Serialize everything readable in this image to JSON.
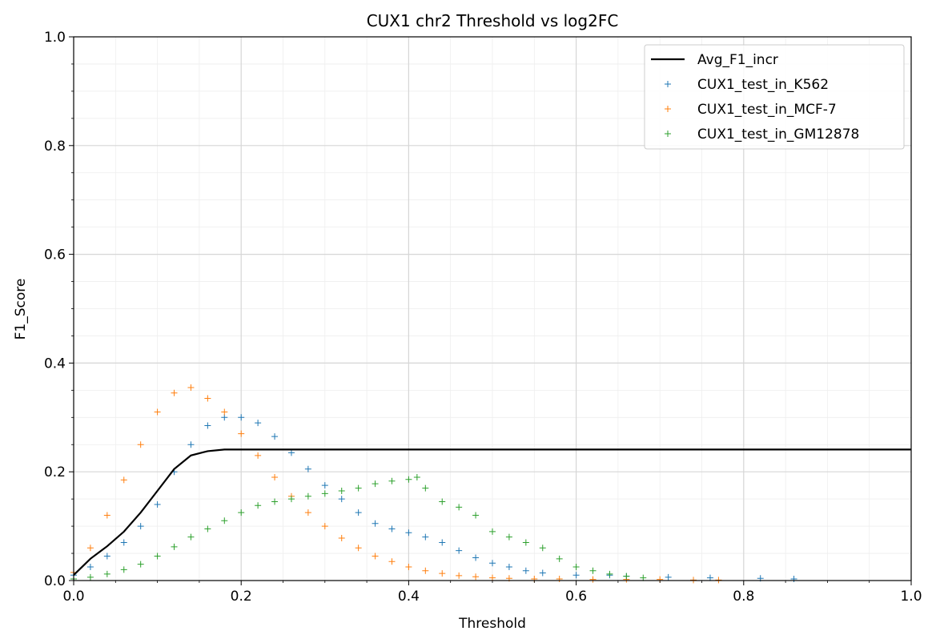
{
  "chart_data": {
    "type": "scatter",
    "title": "CUX1 chr2 Threshold vs log2FC",
    "xlabel": "Threshold",
    "ylabel": "F1_Score",
    "xlim": [
      0.0,
      1.0
    ],
    "ylim": [
      0.0,
      1.0
    ],
    "grid": true,
    "legend_position": "top-right",
    "x_ticks": [
      "0.0",
      "0.2",
      "0.4",
      "0.6",
      "0.8",
      "1.0"
    ],
    "y_ticks": [
      "0.0",
      "0.2",
      "0.4",
      "0.6",
      "0.8",
      "1.0"
    ],
    "series": [
      {
        "name": "Avg_F1_incr",
        "kind": "line",
        "color": "#000000",
        "x": [
          0.0,
          0.02,
          0.04,
          0.06,
          0.08,
          0.1,
          0.12,
          0.14,
          0.16,
          0.18,
          0.2,
          0.4,
          0.6,
          0.8,
          1.0
        ],
        "y": [
          0.01,
          0.04,
          0.063,
          0.09,
          0.125,
          0.165,
          0.205,
          0.23,
          0.238,
          0.241,
          0.241,
          0.241,
          0.241,
          0.241,
          0.241
        ]
      },
      {
        "name": "CUX1_test_in_K562",
        "kind": "scatter",
        "color": "#1f77b4",
        "x": [
          0.0,
          0.02,
          0.04,
          0.06,
          0.08,
          0.1,
          0.12,
          0.14,
          0.16,
          0.18,
          0.2,
          0.22,
          0.24,
          0.26,
          0.28,
          0.3,
          0.32,
          0.34,
          0.36,
          0.38,
          0.4,
          0.42,
          0.44,
          0.46,
          0.48,
          0.5,
          0.52,
          0.54,
          0.56,
          0.6,
          0.64,
          0.66,
          0.71,
          0.76,
          0.82,
          0.86
        ],
        "y": [
          0.01,
          0.025,
          0.045,
          0.07,
          0.1,
          0.14,
          0.2,
          0.25,
          0.285,
          0.3,
          0.3,
          0.29,
          0.265,
          0.235,
          0.205,
          0.175,
          0.15,
          0.125,
          0.105,
          0.095,
          0.088,
          0.08,
          0.07,
          0.055,
          0.042,
          0.032,
          0.025,
          0.018,
          0.014,
          0.01,
          0.01,
          0.008,
          0.006,
          0.005,
          0.004,
          0.003
        ]
      },
      {
        "name": "CUX1_test_in_MCF-7",
        "kind": "scatter",
        "color": "#ff7f0e",
        "x": [
          0.0,
          0.02,
          0.04,
          0.06,
          0.08,
          0.1,
          0.12,
          0.14,
          0.16,
          0.18,
          0.2,
          0.22,
          0.24,
          0.26,
          0.28,
          0.3,
          0.32,
          0.34,
          0.36,
          0.38,
          0.4,
          0.42,
          0.44,
          0.46,
          0.48,
          0.5,
          0.52,
          0.55,
          0.58,
          0.62,
          0.66,
          0.7,
          0.74,
          0.77
        ],
        "y": [
          0.015,
          0.06,
          0.12,
          0.185,
          0.25,
          0.31,
          0.345,
          0.355,
          0.335,
          0.31,
          0.27,
          0.23,
          0.19,
          0.155,
          0.125,
          0.1,
          0.078,
          0.06,
          0.045,
          0.035,
          0.025,
          0.018,
          0.013,
          0.009,
          0.007,
          0.005,
          0.004,
          0.003,
          0.003,
          0.002,
          0.002,
          0.002,
          0.001,
          0.001
        ]
      },
      {
        "name": "CUX1_test_in_GM12878",
        "kind": "scatter",
        "color": "#2ca02c",
        "x": [
          0.0,
          0.02,
          0.04,
          0.06,
          0.08,
          0.1,
          0.12,
          0.14,
          0.16,
          0.18,
          0.2,
          0.22,
          0.24,
          0.26,
          0.28,
          0.3,
          0.32,
          0.34,
          0.36,
          0.38,
          0.4,
          0.41,
          0.42,
          0.44,
          0.46,
          0.48,
          0.5,
          0.52,
          0.54,
          0.56,
          0.58,
          0.6,
          0.62,
          0.64,
          0.66,
          0.68
        ],
        "y": [
          0.003,
          0.006,
          0.012,
          0.02,
          0.03,
          0.045,
          0.062,
          0.08,
          0.095,
          0.11,
          0.125,
          0.138,
          0.145,
          0.15,
          0.155,
          0.16,
          0.165,
          0.17,
          0.178,
          0.183,
          0.186,
          0.19,
          0.17,
          0.145,
          0.135,
          0.12,
          0.09,
          0.08,
          0.07,
          0.06,
          0.04,
          0.025,
          0.018,
          0.012,
          0.008,
          0.005
        ]
      }
    ]
  }
}
